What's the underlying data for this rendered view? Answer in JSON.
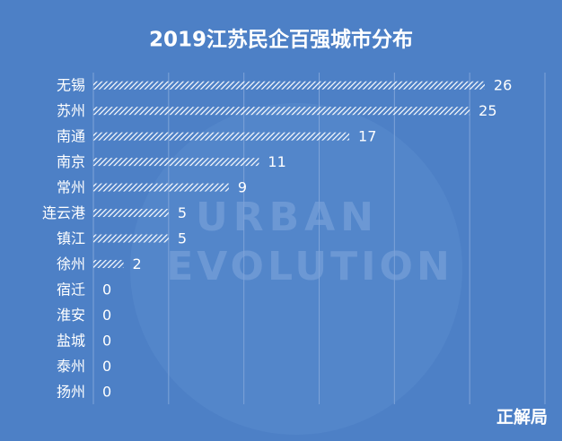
{
  "chart_data": {
    "type": "barh",
    "title": "2019江苏民企百强城市分布",
    "categories": [
      "无锡",
      "苏州",
      "南通",
      "南京",
      "常州",
      "连云港",
      "镇江",
      "徐州",
      "宿迁",
      "淮安",
      "盐城",
      "泰州",
      "扬州"
    ],
    "values": [
      26,
      25,
      17,
      11,
      9,
      5,
      5,
      2,
      0,
      0,
      0,
      0,
      0
    ],
    "color": "#ffffff",
    "background": "#4d80c6",
    "xlim": [
      0,
      30
    ],
    "xticks": [
      0,
      5,
      10,
      15,
      20,
      25,
      30
    ],
    "tick_labels": false,
    "grid": true,
    "watermark": [
      "URBAN",
      "EVOLUTION"
    ],
    "source": "正解局"
  }
}
